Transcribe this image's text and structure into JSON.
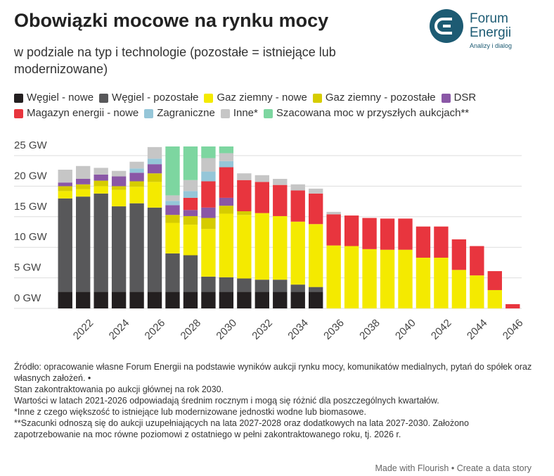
{
  "chart_data": {
    "type": "stacked-bar",
    "title": "Obowiązki mocowe na rynku mocy",
    "subtitle": "w podziale na typ i technologie (pozostałe = istniejące lub modernizowane)",
    "categories": [
      null,
      "2022",
      null,
      "2024",
      null,
      "2026",
      null,
      "2028",
      null,
      "2030",
      null,
      "2032",
      null,
      "2034",
      null,
      "2036",
      null,
      "2038",
      null,
      "2040",
      null,
      "2042",
      null,
      "2044",
      null,
      "2046"
    ],
    "series": [
      {
        "name": "Węgiel - nowe",
        "color": "#231f20",
        "values": [
          2.7,
          2.7,
          2.7,
          2.7,
          2.7,
          2.7,
          2.7,
          2.7,
          2.7,
          2.7,
          2.7,
          2.7,
          2.7,
          2.7,
          2.7,
          0,
          0,
          0,
          0,
          0,
          0,
          0,
          0,
          0,
          0,
          0
        ]
      },
      {
        "name": "Węgiel - pozostałe",
        "color": "#58585a",
        "values": [
          15.3,
          15.6,
          16.1,
          14.0,
          14.5,
          13.8,
          6.3,
          6.0,
          2.5,
          2.4,
          2.2,
          2.0,
          2.0,
          1.2,
          0.8,
          0,
          0,
          0,
          0,
          0,
          0,
          0,
          0,
          0,
          0,
          0
        ]
      },
      {
        "name": "Gaz ziemny - nowe",
        "color": "#f4ea00",
        "values": [
          1.2,
          1.2,
          1.2,
          2.7,
          2.7,
          4.2,
          5.0,
          5.0,
          7.8,
          10.4,
          10.4,
          10.9,
          10.4,
          10.3,
          10.3,
          10.3,
          10.2,
          9.7,
          9.6,
          9.6,
          8.3,
          8.3,
          6.3,
          5.4,
          3.0,
          0
        ]
      },
      {
        "name": "Gaz ziemny - pozostałe",
        "color": "#d6cc00",
        "values": [
          0.8,
          0.8,
          0.9,
          0.6,
          0.9,
          1.4,
          1.3,
          1.4,
          1.8,
          1.3,
          0.6,
          0,
          0,
          0,
          0,
          0,
          0,
          0,
          0,
          0,
          0,
          0,
          0,
          0,
          0,
          0
        ]
      },
      {
        "name": "DSR",
        "color": "#8a57a6",
        "values": [
          0.6,
          0.9,
          1.0,
          1.6,
          1.4,
          1.5,
          1.6,
          1.0,
          1.7,
          1.3,
          0,
          0,
          0,
          0,
          0,
          0,
          0,
          0,
          0,
          0,
          0,
          0,
          0,
          0,
          0,
          0
        ]
      },
      {
        "name": "Magazyn energii - nowe",
        "color": "#e8353e",
        "values": [
          0,
          0,
          0,
          0,
          0,
          0,
          0,
          2.0,
          4.3,
          5.0,
          5.1,
          5.1,
          5.1,
          5.1,
          5.0,
          5.1,
          5.0,
          5.1,
          5.1,
          5.1,
          5.1,
          5.1,
          5.0,
          4.8,
          3.1,
          0.7
        ]
      },
      {
        "name": "Zagraniczne",
        "color": "#95c6d8",
        "values": [
          0,
          0,
          0,
          0,
          0.7,
          0.9,
          0.7,
          1.1,
          1.6,
          1.0,
          0,
          0,
          0,
          0,
          0,
          0,
          0,
          0,
          0,
          0,
          0,
          0,
          0,
          0,
          0,
          0
        ]
      },
      {
        "name": "Inne*",
        "color": "#c6c6c6",
        "values": [
          2.1,
          2.1,
          1.1,
          0.9,
          1.1,
          1.9,
          0.9,
          1.8,
          2.2,
          1.3,
          1.1,
          1.1,
          1.0,
          1.0,
          0.8,
          0.4,
          0,
          0,
          0,
          0,
          0,
          0,
          0,
          0,
          0,
          0
        ]
      },
      {
        "name": "Szacowana moc w przyszłych aukcjach**",
        "color": "#7dd6a0",
        "values": [
          0,
          0,
          0,
          0,
          0,
          0,
          8.0,
          5.5,
          1.9,
          1.1,
          0,
          0,
          0,
          0,
          0,
          0,
          0,
          0,
          0,
          0,
          0,
          0,
          0,
          0,
          0,
          0
        ]
      }
    ],
    "ylim": [
      0,
      26.5
    ],
    "yticks": [
      {
        "value": 0,
        "label": "0 GW"
      },
      {
        "value": 5,
        "label": "5 GW"
      },
      {
        "value": 10,
        "label": "10 GW"
      },
      {
        "value": 15,
        "label": "15 GW"
      },
      {
        "value": 20,
        "label": "20 GW"
      },
      {
        "value": 25,
        "label": "25 GW"
      }
    ],
    "grid": true,
    "notes": [
      "Źródło: opracowanie własne Forum Energii na podstawie wyników aukcji rynku mocy, komunikatów medialnych, pytań do spółek oraz własnych założeń. •",
      "Stan zakontraktowania po aukcji głównej na rok 2030.",
      "Wartości w latach 2021-2026 odpowiadają średnim rocznym i mogą się różnić dla poszczególnych kwartałów.",
      "*Inne z czego większość to istniejące lub modernizowane jednostki wodne lub biomasowe.",
      "**Szacunki odnoszą się do aukcji uzupełniających na lata 2027-2028 oraz dodatkowych na lata 2027-2030. Założono zapotrzebowanie na moc równe poziomowi z ostatniego w pełni zakontraktowanego roku, tj. 2026 r."
    ]
  },
  "logo": {
    "name_line1": "Forum",
    "name_line2": "Energii",
    "tagline": "Analizy i dialog"
  },
  "credit": "Made with Flourish • Create a data story"
}
